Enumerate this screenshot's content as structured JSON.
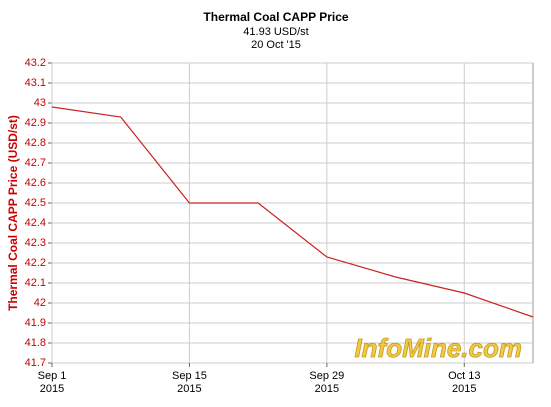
{
  "chart_data": {
    "type": "line",
    "title": "Thermal Coal CAPP Price",
    "subtitle": "41.93 USD/st",
    "date_label": "20 Oct '15",
    "y_label": "Thermal Coal CAPP Price (USD/st)",
    "watermark": "InfoMine.com",
    "x": [
      "2015-09-01",
      "2015-09-08",
      "2015-09-15",
      "2015-09-22",
      "2015-09-29",
      "2015-10-06",
      "2015-10-13",
      "2015-10-20"
    ],
    "series": [
      {
        "name": "Thermal Coal CAPP Price",
        "color": "#cc2222",
        "values": [
          42.98,
          42.93,
          42.5,
          42.5,
          42.23,
          42.13,
          42.05,
          41.93
        ]
      }
    ],
    "xlim": [
      "2015-09-01",
      "2015-10-20"
    ],
    "xticks": [
      {
        "value": "2015-09-01",
        "label": "Sep 1",
        "year": "2015"
      },
      {
        "value": "2015-09-15",
        "label": "Sep 15",
        "year": "2015"
      },
      {
        "value": "2015-09-29",
        "label": "Sep 29",
        "year": "2015"
      },
      {
        "value": "2015-10-13",
        "label": "Oct 13",
        "year": "2015"
      }
    ],
    "ylim": [
      41.7,
      43.2
    ],
    "yticks": [
      41.7,
      41.8,
      41.9,
      42,
      42.1,
      42.2,
      42.3,
      42.4,
      42.5,
      42.6,
      42.7,
      42.8,
      42.9,
      43,
      43.1,
      43.2
    ],
    "grid": true
  }
}
